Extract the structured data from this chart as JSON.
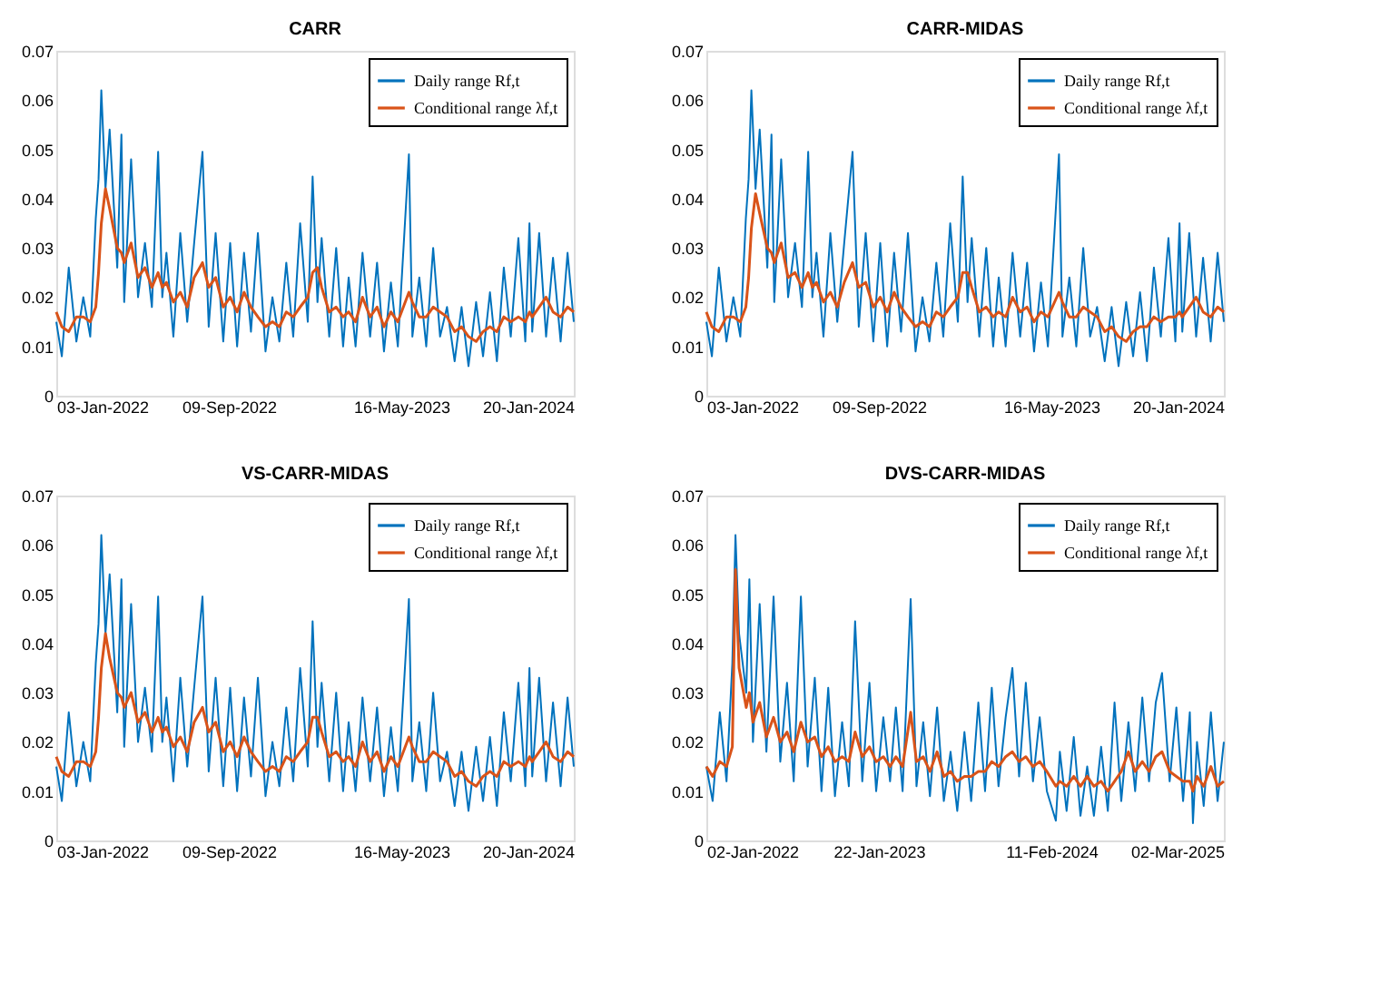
{
  "chart_data": [
    {
      "type": "line",
      "title": "CARR",
      "legend": "top right",
      "grid": false,
      "x": [
        "2022-01-03",
        "2022-01-11",
        "2022-01-21",
        "2022-02-01",
        "2022-02-11",
        "2022-02-21",
        "2022-03-01",
        "2022-03-05",
        "2022-03-09",
        "2022-03-15",
        "2022-03-21",
        "2022-04-01",
        "2022-04-07",
        "2022-04-11",
        "2022-04-21",
        "2022-05-01",
        "2022-05-11",
        "2022-05-21",
        "2022-05-30",
        "2022-06-05",
        "2022-06-11",
        "2022-06-21",
        "2022-07-01",
        "2022-07-11",
        "2022-07-21",
        "2022-08-02",
        "2022-08-11",
        "2022-08-21",
        "2022-09-01",
        "2022-09-11",
        "2022-09-21",
        "2022-10-01",
        "2022-10-11",
        "2022-10-21",
        "2022-11-01",
        "2022-11-11",
        "2022-11-21",
        "2022-12-01",
        "2022-12-11",
        "2022-12-21",
        "2023-01-01",
        "2023-01-08",
        "2023-01-15",
        "2023-01-21",
        "2023-02-01",
        "2023-02-11",
        "2023-02-21",
        "2023-03-01",
        "2023-03-11",
        "2023-03-21",
        "2023-04-01",
        "2023-04-11",
        "2023-04-21",
        "2023-05-01",
        "2023-05-11",
        "2023-05-27",
        "2023-06-01",
        "2023-06-11",
        "2023-06-21",
        "2023-07-01",
        "2023-07-11",
        "2023-07-21",
        "2023-08-01",
        "2023-08-11",
        "2023-08-21",
        "2023-09-01",
        "2023-09-11",
        "2023-09-21",
        "2023-10-01",
        "2023-10-11",
        "2023-10-21",
        "2023-11-01",
        "2023-11-11",
        "2023-11-17",
        "2023-11-21",
        "2023-12-01",
        "2023-12-11",
        "2023-12-21",
        "2024-01-01",
        "2024-01-11",
        "2024-01-20"
      ],
      "series": [
        {
          "name": "Daily range Rf,t",
          "color": "#0072bd",
          "values": [
            0.015,
            0.008,
            0.026,
            0.011,
            0.02,
            0.012,
            0.036,
            0.044,
            0.062,
            0.042,
            0.054,
            0.026,
            0.053,
            0.019,
            0.048,
            0.02,
            0.031,
            0.018,
            0.0495,
            0.02,
            0.029,
            0.012,
            0.033,
            0.015,
            0.031,
            0.0495,
            0.014,
            0.033,
            0.011,
            0.031,
            0.01,
            0.029,
            0.013,
            0.033,
            0.009,
            0.02,
            0.011,
            0.027,
            0.012,
            0.035,
            0.015,
            0.0445,
            0.019,
            0.032,
            0.012,
            0.03,
            0.01,
            0.024,
            0.01,
            0.029,
            0.012,
            0.027,
            0.009,
            0.023,
            0.01,
            0.049,
            0.012,
            0.024,
            0.01,
            0.03,
            0.012,
            0.018,
            0.007,
            0.018,
            0.006,
            0.019,
            0.008,
            0.021,
            0.007,
            0.026,
            0.012,
            0.032,
            0.011,
            0.035,
            0.013,
            0.033,
            0.012,
            0.028,
            0.011,
            0.029,
            0.015
          ]
        },
        {
          "name": "Conditional range λf,t",
          "color": "#d95319",
          "values": [
            0.017,
            0.014,
            0.013,
            0.016,
            0.016,
            0.015,
            0.018,
            0.025,
            0.035,
            0.042,
            0.038,
            0.03,
            0.029,
            0.027,
            0.031,
            0.024,
            0.026,
            0.022,
            0.025,
            0.022,
            0.023,
            0.019,
            0.021,
            0.018,
            0.024,
            0.027,
            0.022,
            0.024,
            0.018,
            0.02,
            0.017,
            0.021,
            0.018,
            0.016,
            0.014,
            0.015,
            0.014,
            0.017,
            0.016,
            0.018,
            0.02,
            0.025,
            0.026,
            0.022,
            0.017,
            0.018,
            0.016,
            0.017,
            0.015,
            0.02,
            0.016,
            0.018,
            0.014,
            0.017,
            0.015,
            0.021,
            0.019,
            0.016,
            0.016,
            0.018,
            0.017,
            0.016,
            0.013,
            0.014,
            0.012,
            0.011,
            0.013,
            0.014,
            0.013,
            0.016,
            0.015,
            0.016,
            0.015,
            0.017,
            0.016,
            0.018,
            0.02,
            0.017,
            0.016,
            0.018,
            0.017
          ]
        }
      ],
      "xlim": [
        "2022-01-03",
        "2024-01-20"
      ],
      "xticks": [
        {
          "value": "2022-01-03",
          "label": "03-Jan-2022"
        },
        {
          "value": "2022-09-09",
          "label": "09-Sep-2022"
        },
        {
          "value": "2023-05-16",
          "label": "16-May-2023"
        },
        {
          "value": "2024-01-20",
          "label": "20-Jan-2024"
        }
      ],
      "ylim": [
        0,
        0.07
      ],
      "yticks": [
        0,
        0.01,
        0.02,
        0.03,
        0.04,
        0.05,
        0.06,
        0.07
      ]
    },
    {
      "type": "line",
      "title": "CARR-MIDAS",
      "legend": "top right",
      "grid": false,
      "x": [
        "2022-01-03",
        "2022-01-11",
        "2022-01-21",
        "2022-02-01",
        "2022-02-11",
        "2022-02-21",
        "2022-03-01",
        "2022-03-05",
        "2022-03-09",
        "2022-03-15",
        "2022-03-21",
        "2022-04-01",
        "2022-04-07",
        "2022-04-11",
        "2022-04-21",
        "2022-05-01",
        "2022-05-11",
        "2022-05-21",
        "2022-05-30",
        "2022-06-05",
        "2022-06-11",
        "2022-06-21",
        "2022-07-01",
        "2022-07-11",
        "2022-07-21",
        "2022-08-02",
        "2022-08-11",
        "2022-08-21",
        "2022-09-01",
        "2022-09-11",
        "2022-09-21",
        "2022-10-01",
        "2022-10-11",
        "2022-10-21",
        "2022-11-01",
        "2022-11-11",
        "2022-11-21",
        "2022-12-01",
        "2022-12-11",
        "2022-12-21",
        "2023-01-01",
        "2023-01-08",
        "2023-01-15",
        "2023-01-21",
        "2023-02-01",
        "2023-02-11",
        "2023-02-21",
        "2023-03-01",
        "2023-03-11",
        "2023-03-21",
        "2023-04-01",
        "2023-04-11",
        "2023-04-21",
        "2023-05-01",
        "2023-05-11",
        "2023-05-27",
        "2023-06-01",
        "2023-06-11",
        "2023-06-21",
        "2023-07-01",
        "2023-07-11",
        "2023-07-21",
        "2023-08-01",
        "2023-08-11",
        "2023-08-21",
        "2023-09-01",
        "2023-09-11",
        "2023-09-21",
        "2023-10-01",
        "2023-10-11",
        "2023-10-21",
        "2023-11-01",
        "2023-11-11",
        "2023-11-17",
        "2023-11-21",
        "2023-12-01",
        "2023-12-11",
        "2023-12-21",
        "2024-01-01",
        "2024-01-11",
        "2024-01-20"
      ],
      "series": [
        {
          "name": "Daily range Rf,t",
          "color": "#0072bd",
          "values": [
            0.015,
            0.008,
            0.026,
            0.011,
            0.02,
            0.012,
            0.036,
            0.044,
            0.062,
            0.042,
            0.054,
            0.026,
            0.053,
            0.019,
            0.048,
            0.02,
            0.031,
            0.018,
            0.0495,
            0.02,
            0.029,
            0.012,
            0.033,
            0.015,
            0.031,
            0.0495,
            0.014,
            0.033,
            0.011,
            0.031,
            0.01,
            0.029,
            0.013,
            0.033,
            0.009,
            0.02,
            0.011,
            0.027,
            0.012,
            0.035,
            0.015,
            0.0445,
            0.019,
            0.032,
            0.012,
            0.03,
            0.01,
            0.024,
            0.01,
            0.029,
            0.012,
            0.027,
            0.009,
            0.023,
            0.01,
            0.049,
            0.012,
            0.024,
            0.01,
            0.03,
            0.012,
            0.018,
            0.007,
            0.018,
            0.006,
            0.019,
            0.008,
            0.021,
            0.007,
            0.026,
            0.012,
            0.032,
            0.011,
            0.035,
            0.013,
            0.033,
            0.012,
            0.028,
            0.011,
            0.029,
            0.015
          ]
        },
        {
          "name": "Conditional range λf,t",
          "color": "#d95319",
          "values": [
            0.017,
            0.014,
            0.013,
            0.016,
            0.016,
            0.015,
            0.018,
            0.024,
            0.034,
            0.041,
            0.037,
            0.03,
            0.029,
            0.027,
            0.031,
            0.024,
            0.025,
            0.022,
            0.025,
            0.022,
            0.023,
            0.019,
            0.021,
            0.018,
            0.023,
            0.027,
            0.022,
            0.023,
            0.018,
            0.02,
            0.017,
            0.021,
            0.018,
            0.016,
            0.014,
            0.015,
            0.014,
            0.017,
            0.016,
            0.018,
            0.02,
            0.025,
            0.025,
            0.022,
            0.017,
            0.018,
            0.016,
            0.017,
            0.016,
            0.02,
            0.017,
            0.018,
            0.015,
            0.017,
            0.016,
            0.021,
            0.019,
            0.016,
            0.016,
            0.018,
            0.017,
            0.016,
            0.013,
            0.014,
            0.012,
            0.011,
            0.013,
            0.014,
            0.014,
            0.016,
            0.015,
            0.016,
            0.016,
            0.017,
            0.016,
            0.018,
            0.02,
            0.017,
            0.016,
            0.018,
            0.017
          ]
        }
      ],
      "xlim": [
        "2022-01-03",
        "2024-01-20"
      ],
      "xticks": [
        {
          "value": "2022-01-03",
          "label": "03-Jan-2022"
        },
        {
          "value": "2022-09-09",
          "label": "09-Sep-2022"
        },
        {
          "value": "2023-05-16",
          "label": "16-May-2023"
        },
        {
          "value": "2024-01-20",
          "label": "20-Jan-2024"
        }
      ],
      "ylim": [
        0,
        0.07
      ],
      "yticks": [
        0,
        0.01,
        0.02,
        0.03,
        0.04,
        0.05,
        0.06,
        0.07
      ]
    },
    {
      "type": "line",
      "title": "VS-CARR-MIDAS",
      "legend": "top right",
      "grid": false,
      "x": [
        "2022-01-03",
        "2022-01-11",
        "2022-01-21",
        "2022-02-01",
        "2022-02-11",
        "2022-02-21",
        "2022-03-01",
        "2022-03-05",
        "2022-03-09",
        "2022-03-15",
        "2022-03-21",
        "2022-04-01",
        "2022-04-07",
        "2022-04-11",
        "2022-04-21",
        "2022-05-01",
        "2022-05-11",
        "2022-05-21",
        "2022-05-30",
        "2022-06-05",
        "2022-06-11",
        "2022-06-21",
        "2022-07-01",
        "2022-07-11",
        "2022-07-21",
        "2022-08-02",
        "2022-08-11",
        "2022-08-21",
        "2022-09-01",
        "2022-09-11",
        "2022-09-21",
        "2022-10-01",
        "2022-10-11",
        "2022-10-21",
        "2022-11-01",
        "2022-11-11",
        "2022-11-21",
        "2022-12-01",
        "2022-12-11",
        "2022-12-21",
        "2023-01-01",
        "2023-01-08",
        "2023-01-15",
        "2023-01-21",
        "2023-02-01",
        "2023-02-11",
        "2023-02-21",
        "2023-03-01",
        "2023-03-11",
        "2023-03-21",
        "2023-04-01",
        "2023-04-11",
        "2023-04-21",
        "2023-05-01",
        "2023-05-11",
        "2023-05-27",
        "2023-06-01",
        "2023-06-11",
        "2023-06-21",
        "2023-07-01",
        "2023-07-11",
        "2023-07-21",
        "2023-08-01",
        "2023-08-11",
        "2023-08-21",
        "2023-09-01",
        "2023-09-11",
        "2023-09-21",
        "2023-10-01",
        "2023-10-11",
        "2023-10-21",
        "2023-11-01",
        "2023-11-11",
        "2023-11-17",
        "2023-11-21",
        "2023-12-01",
        "2023-12-11",
        "2023-12-21",
        "2024-01-01",
        "2024-01-11",
        "2024-01-20"
      ],
      "series": [
        {
          "name": "Daily range Rf,t",
          "color": "#0072bd",
          "values": [
            0.015,
            0.008,
            0.026,
            0.011,
            0.02,
            0.012,
            0.036,
            0.044,
            0.062,
            0.042,
            0.054,
            0.026,
            0.053,
            0.019,
            0.048,
            0.02,
            0.031,
            0.018,
            0.0495,
            0.02,
            0.029,
            0.012,
            0.033,
            0.015,
            0.031,
            0.0495,
            0.014,
            0.033,
            0.011,
            0.031,
            0.01,
            0.029,
            0.013,
            0.033,
            0.009,
            0.02,
            0.011,
            0.027,
            0.012,
            0.035,
            0.015,
            0.0445,
            0.019,
            0.032,
            0.012,
            0.03,
            0.01,
            0.024,
            0.01,
            0.029,
            0.012,
            0.027,
            0.009,
            0.023,
            0.01,
            0.049,
            0.012,
            0.024,
            0.01,
            0.03,
            0.012,
            0.018,
            0.007,
            0.018,
            0.006,
            0.019,
            0.008,
            0.021,
            0.007,
            0.026,
            0.012,
            0.032,
            0.011,
            0.035,
            0.013,
            0.033,
            0.012,
            0.028,
            0.011,
            0.029,
            0.015
          ]
        },
        {
          "name": "Conditional range λf,t",
          "color": "#d95319",
          "values": [
            0.017,
            0.014,
            0.013,
            0.016,
            0.016,
            0.015,
            0.018,
            0.025,
            0.035,
            0.042,
            0.037,
            0.03,
            0.029,
            0.027,
            0.03,
            0.024,
            0.026,
            0.022,
            0.025,
            0.022,
            0.023,
            0.019,
            0.021,
            0.018,
            0.024,
            0.027,
            0.022,
            0.024,
            0.018,
            0.02,
            0.017,
            0.021,
            0.018,
            0.016,
            0.014,
            0.015,
            0.014,
            0.017,
            0.016,
            0.018,
            0.02,
            0.025,
            0.025,
            0.022,
            0.017,
            0.018,
            0.016,
            0.017,
            0.015,
            0.02,
            0.016,
            0.018,
            0.014,
            0.017,
            0.015,
            0.021,
            0.019,
            0.016,
            0.016,
            0.018,
            0.017,
            0.016,
            0.013,
            0.014,
            0.012,
            0.011,
            0.013,
            0.014,
            0.013,
            0.016,
            0.015,
            0.016,
            0.015,
            0.017,
            0.016,
            0.018,
            0.02,
            0.017,
            0.016,
            0.018,
            0.017
          ]
        }
      ],
      "xlim": [
        "2022-01-03",
        "2024-01-20"
      ],
      "xticks": [
        {
          "value": "2022-01-03",
          "label": "03-Jan-2022"
        },
        {
          "value": "2022-09-09",
          "label": "09-Sep-2022"
        },
        {
          "value": "2023-05-16",
          "label": "16-May-2023"
        },
        {
          "value": "2024-01-20",
          "label": "20-Jan-2024"
        }
      ],
      "ylim": [
        0,
        0.07
      ],
      "yticks": [
        0,
        0.01,
        0.02,
        0.03,
        0.04,
        0.05,
        0.06,
        0.07
      ]
    },
    {
      "type": "line",
      "title": "DVS-CARR-MIDAS",
      "legend": "top right",
      "grid": false,
      "x": [
        "2022-01-02",
        "2022-01-16",
        "2022-02-01",
        "2022-02-16",
        "2022-03-01",
        "2022-03-08",
        "2022-03-16",
        "2022-04-01",
        "2022-04-08",
        "2022-04-16",
        "2022-05-01",
        "2022-05-16",
        "2022-06-01",
        "2022-06-16",
        "2022-07-01",
        "2022-07-16",
        "2022-08-01",
        "2022-08-16",
        "2022-09-01",
        "2022-09-16",
        "2022-10-01",
        "2022-10-16",
        "2022-11-01",
        "2022-11-16",
        "2022-11-30",
        "2022-12-16",
        "2023-01-01",
        "2023-01-16",
        "2023-02-01",
        "2023-02-16",
        "2023-03-01",
        "2023-03-16",
        "2023-04-03",
        "2023-04-16",
        "2023-05-01",
        "2023-05-16",
        "2023-06-01",
        "2023-06-16",
        "2023-07-01",
        "2023-07-16",
        "2023-08-01",
        "2023-08-16",
        "2023-09-01",
        "2023-09-16",
        "2023-10-01",
        "2023-10-16",
        "2023-11-01",
        "2023-11-16",
        "2023-12-01",
        "2023-12-16",
        "2024-01-01",
        "2024-01-16",
        "2024-02-01",
        "2024-02-21",
        "2024-03-01",
        "2024-03-16",
        "2024-04-01",
        "2024-04-16",
        "2024-05-01",
        "2024-05-16",
        "2024-06-01",
        "2024-06-16",
        "2024-07-01",
        "2024-07-16",
        "2024-08-01",
        "2024-08-16",
        "2024-09-01",
        "2024-09-16",
        "2024-10-01",
        "2024-10-15",
        "2024-11-01",
        "2024-11-16",
        "2024-12-01",
        "2024-12-16",
        "2024-12-23",
        "2025-01-01",
        "2025-01-16",
        "2025-02-01",
        "2025-02-16",
        "2025-03-02"
      ],
      "series": [
        {
          "name": "Daily range Rf,t",
          "color": "#0072bd",
          "values": [
            0.015,
            0.008,
            0.026,
            0.012,
            0.036,
            0.062,
            0.042,
            0.03,
            0.053,
            0.02,
            0.048,
            0.018,
            0.0495,
            0.016,
            0.032,
            0.012,
            0.0495,
            0.015,
            0.033,
            0.01,
            0.031,
            0.009,
            0.024,
            0.011,
            0.0445,
            0.012,
            0.032,
            0.01,
            0.025,
            0.012,
            0.027,
            0.01,
            0.049,
            0.011,
            0.024,
            0.009,
            0.027,
            0.008,
            0.018,
            0.006,
            0.022,
            0.008,
            0.028,
            0.01,
            0.031,
            0.011,
            0.025,
            0.035,
            0.013,
            0.032,
            0.012,
            0.025,
            0.01,
            0.004,
            0.018,
            0.006,
            0.021,
            0.005,
            0.015,
            0.005,
            0.019,
            0.006,
            0.028,
            0.008,
            0.024,
            0.01,
            0.029,
            0.012,
            0.028,
            0.034,
            0.012,
            0.027,
            0.008,
            0.026,
            0.0035,
            0.02,
            0.007,
            0.026,
            0.008,
            0.02
          ]
        },
        {
          "name": "Conditional range λf,t",
          "color": "#d95319",
          "values": [
            0.015,
            0.013,
            0.016,
            0.015,
            0.019,
            0.055,
            0.035,
            0.027,
            0.03,
            0.024,
            0.028,
            0.021,
            0.025,
            0.02,
            0.022,
            0.018,
            0.024,
            0.02,
            0.021,
            0.017,
            0.019,
            0.016,
            0.017,
            0.016,
            0.022,
            0.017,
            0.019,
            0.016,
            0.017,
            0.015,
            0.017,
            0.015,
            0.026,
            0.016,
            0.017,
            0.014,
            0.018,
            0.013,
            0.014,
            0.012,
            0.013,
            0.013,
            0.014,
            0.014,
            0.016,
            0.015,
            0.017,
            0.018,
            0.016,
            0.017,
            0.015,
            0.016,
            0.014,
            0.011,
            0.012,
            0.011,
            0.013,
            0.011,
            0.013,
            0.011,
            0.012,
            0.01,
            0.012,
            0.014,
            0.018,
            0.014,
            0.016,
            0.014,
            0.017,
            0.018,
            0.014,
            0.013,
            0.012,
            0.012,
            0.01,
            0.013,
            0.011,
            0.015,
            0.011,
            0.012
          ]
        }
      ],
      "xlim": [
        "2022-01-02",
        "2025-03-02"
      ],
      "xticks": [
        {
          "value": "2022-01-02",
          "label": "02-Jan-2022"
        },
        {
          "value": "2023-01-22",
          "label": "22-Jan-2023"
        },
        {
          "value": "2024-02-11",
          "label": "11-Feb-2024"
        },
        {
          "value": "2025-03-02",
          "label": "02-Mar-2025"
        }
      ],
      "ylim": [
        0,
        0.07
      ],
      "yticks": [
        0,
        0.01,
        0.02,
        0.03,
        0.04,
        0.05,
        0.06,
        0.07
      ]
    }
  ]
}
